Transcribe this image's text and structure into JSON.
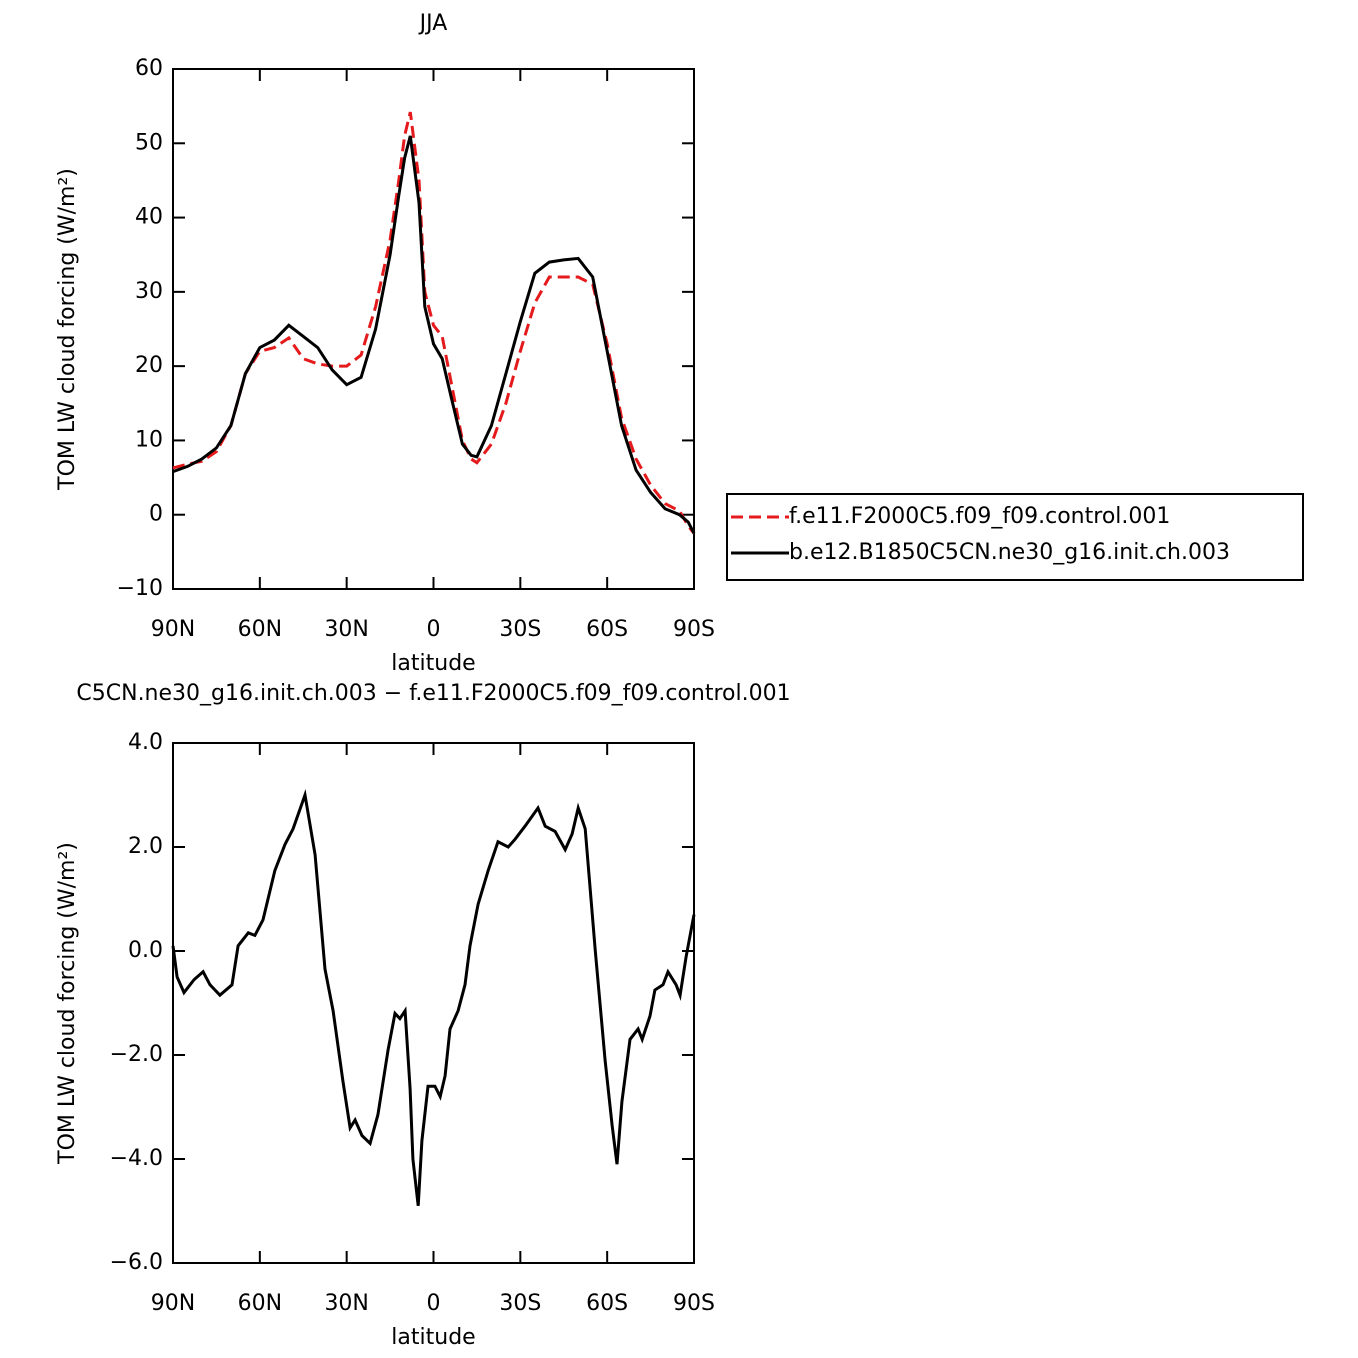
{
  "chart_data": [
    {
      "type": "line",
      "title": "JJA",
      "xlabel": "latitude",
      "ylabel": "TOM LW cloud forcing (W/m²)",
      "xlim": [
        90,
        -90
      ],
      "xticks": [
        {
          "value": 90,
          "label": "90N"
        },
        {
          "value": 60,
          "label": "60N"
        },
        {
          "value": 30,
          "label": "30N"
        },
        0,
        {
          "value": -30,
          "label": "30S"
        },
        {
          "value": -60,
          "label": "60S"
        },
        {
          "value": -90,
          "label": "90S"
        }
      ],
      "ylim": [
        -10,
        60
      ],
      "yticks": [
        {
          "value": -10,
          "label": "−10"
        },
        0,
        10,
        20,
        30,
        40,
        50,
        60
      ],
      "legend": "right",
      "x": [
        90,
        85,
        80,
        75,
        70,
        65,
        60,
        55,
        50,
        45,
        40,
        35,
        30,
        25,
        20,
        15,
        12,
        10,
        8,
        5,
        3,
        0,
        -3,
        -6,
        -10,
        -13,
        -15,
        -20,
        -25,
        -30,
        -35,
        -40,
        -45,
        -50,
        -55,
        -60,
        -65,
        -70,
        -75,
        -80,
        -85,
        -88,
        -90
      ],
      "series": [
        {
          "name": "f.e11.F2000C5.f09_f09.control.001",
          "color": "#e41a1c",
          "linestyle": "dashed",
          "values": [
            6.3,
            6.8,
            7.2,
            8.5,
            12,
            19,
            22,
            22.5,
            23.8,
            21,
            20.3,
            20,
            20,
            21.5,
            28,
            37,
            45,
            51,
            54.2,
            45,
            30,
            25.5,
            24,
            18,
            10,
            7.5,
            7,
            9.5,
            15,
            22,
            28.5,
            32,
            32,
            32,
            31,
            23,
            13,
            7.5,
            4,
            1.5,
            0.5,
            -1.5,
            -2.5
          ]
        },
        {
          "name": "b.e12.B1850C5CN.ne30_g16.init.ch.003",
          "color": "#000000",
          "linestyle": "solid",
          "values": [
            5.8,
            6.5,
            7.5,
            9,
            12,
            19,
            22.5,
            23.5,
            25.5,
            24,
            22.5,
            19.5,
            17.5,
            18.5,
            25,
            35,
            43,
            48,
            51,
            42,
            28,
            23,
            21,
            16,
            9.5,
            8,
            7.8,
            12,
            19,
            26,
            32.5,
            34,
            34.3,
            34.5,
            32,
            22,
            12,
            6,
            3,
            0.8,
            0,
            -1,
            -2.5
          ]
        }
      ]
    },
    {
      "type": "line",
      "title": "C5CN.ne30_g16.init.ch.003 − f.e11.F2000C5.f09_f09.control.001",
      "xlabel": "latitude",
      "ylabel": "TOM LW cloud forcing (W/m²)",
      "xlim": [
        90,
        -90
      ],
      "xticks": [
        {
          "value": 90,
          "label": "90N"
        },
        {
          "value": 60,
          "label": "60N"
        },
        {
          "value": 30,
          "label": "30N"
        },
        0,
        {
          "value": -30,
          "label": "30S"
        },
        {
          "value": -60,
          "label": "60S"
        },
        {
          "value": -90,
          "label": "90S"
        }
      ],
      "ylim": [
        -6,
        4
      ],
      "yticks": [
        {
          "value": -6,
          "label": "−6.0"
        },
        {
          "value": -4,
          "label": "−4.0"
        },
        {
          "value": -2,
          "label": "−2.0"
        },
        {
          "value": 0,
          "label": "0.0"
        },
        {
          "value": 2,
          "label": "2.0"
        },
        {
          "value": 4,
          "label": "4.0"
        }
      ],
      "x": [
        90,
        88.6,
        86.2,
        82.7,
        79.6,
        77.2,
        73.8,
        69.6,
        67.5,
        64,
        61.7,
        58.9,
        54.8,
        51.3,
        48.5,
        44.4,
        40.9,
        37.5,
        34.7,
        31.3,
        28.8,
        27.1,
        24.7,
        21.9,
        19.2,
        15.7,
        13.3,
        11.6,
        9.8,
        8.1,
        7.1,
        5.3,
        4,
        1.9,
        -0.5,
        -2.3,
        -4,
        -5.7,
        -8.5,
        -10.9,
        -12.6,
        -15.4,
        -18.9,
        -22.3,
        -25.8,
        -28.2,
        -31.6,
        -36.1,
        -38.6,
        -42,
        -45.5,
        -47.9,
        -50,
        -52.4,
        -55.9,
        -59.3,
        -61.7,
        -63.4,
        -65.1,
        -67.9,
        -70.7,
        -72.1,
        -74.8,
        -76.5,
        -79.3,
        -81,
        -83.8,
        -85.2,
        -87.3,
        -90
      ],
      "series": [
        {
          "color": "#000000",
          "linestyle": "solid",
          "values": [
            0.1,
            -0.5,
            -0.8,
            -0.55,
            -0.4,
            -0.65,
            -0.85,
            -0.65,
            0.1,
            0.35,
            0.3,
            0.6,
            1.55,
            2.05,
            2.35,
            3,
            1.85,
            -0.35,
            -1.15,
            -2.5,
            -3.4,
            -3.25,
            -3.55,
            -3.7,
            -3.15,
            -1.9,
            -1.2,
            -1.3,
            -1.15,
            -2.65,
            -4,
            -4.9,
            -3.65,
            -2.6,
            -2.6,
            -2.8,
            -2.4,
            -1.5,
            -1.15,
            -0.65,
            0.1,
            0.9,
            1.55,
            2.1,
            2,
            2.15,
            2.4,
            2.75,
            2.4,
            2.3,
            1.95,
            2.25,
            2.75,
            2.35,
            0,
            -2.1,
            -3.35,
            -4.1,
            -2.9,
            -1.7,
            -1.5,
            -1.7,
            -1.25,
            -0.75,
            -0.65,
            -0.4,
            -0.65,
            -0.85,
            -0.1,
            0.7
          ]
        }
      ]
    }
  ]
}
